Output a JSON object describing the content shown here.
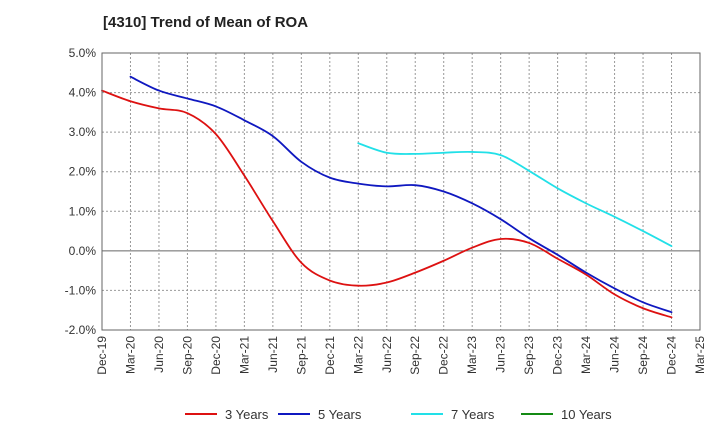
{
  "chart_data": {
    "type": "line",
    "title": "[4310]  Trend of Mean of ROA",
    "xlabel": "",
    "ylabel": "",
    "ylim": [
      -2.0,
      5.0
    ],
    "y_ticks": [
      5.0,
      4.0,
      3.0,
      2.0,
      1.0,
      0.0,
      -1.0,
      -2.0
    ],
    "y_tick_labels": [
      "5.0%",
      "4.0%",
      "3.0%",
      "2.0%",
      "1.0%",
      "0.0%",
      "-1.0%",
      "-2.0%"
    ],
    "categories": [
      "Dec-19",
      "Mar-20",
      "Jun-20",
      "Sep-20",
      "Dec-20",
      "Mar-21",
      "Jun-21",
      "Sep-21",
      "Dec-21",
      "Mar-22",
      "Jun-22",
      "Sep-22",
      "Dec-22",
      "Mar-23",
      "Jun-23",
      "Sep-23",
      "Dec-23",
      "Mar-24",
      "Jun-24",
      "Sep-24",
      "Dec-24",
      "Mar-25"
    ],
    "grid": true,
    "legend_position": "bottom",
    "series": [
      {
        "name": "3 Years",
        "color": "#dd1111",
        "values": [
          4.05,
          3.78,
          3.6,
          3.48,
          2.95,
          1.9,
          0.75,
          -0.3,
          -0.75,
          -0.88,
          -0.8,
          -0.55,
          -0.25,
          0.08,
          0.3,
          0.2,
          -0.2,
          -0.6,
          -1.1,
          -1.45,
          -1.68,
          null
        ]
      },
      {
        "name": "5 Years",
        "color": "#0f18c0",
        "values": [
          null,
          4.4,
          4.05,
          3.85,
          3.65,
          3.3,
          2.9,
          2.25,
          1.85,
          1.7,
          1.63,
          1.66,
          1.5,
          1.2,
          0.8,
          0.32,
          -0.1,
          -0.55,
          -0.95,
          -1.3,
          -1.55,
          null
        ]
      },
      {
        "name": "7 Years",
        "color": "#22e0e8",
        "values": [
          null,
          null,
          null,
          null,
          null,
          null,
          null,
          null,
          null,
          2.72,
          2.48,
          2.45,
          2.48,
          2.5,
          2.42,
          2.02,
          1.58,
          1.2,
          0.86,
          0.5,
          0.12,
          null
        ]
      },
      {
        "name": "10 Years",
        "color": "#148a14",
        "values": [
          null,
          null,
          null,
          null,
          null,
          null,
          null,
          null,
          null,
          null,
          null,
          null,
          null,
          null,
          null,
          null,
          null,
          null,
          null,
          null,
          null,
          null
        ]
      }
    ]
  }
}
